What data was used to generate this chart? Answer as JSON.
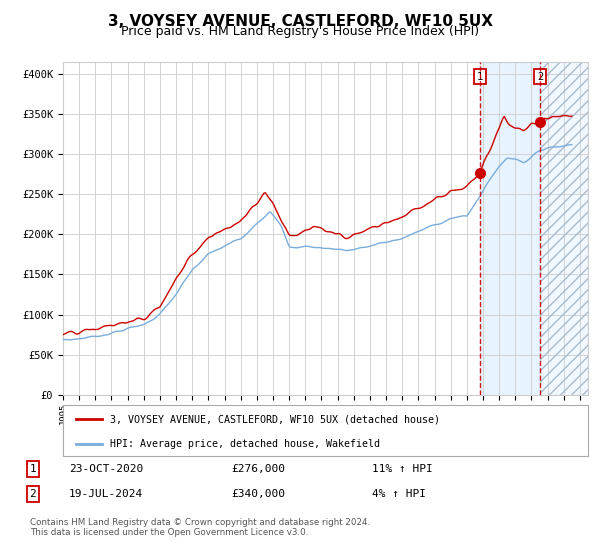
{
  "title": "3, VOYSEY AVENUE, CASTLEFORD, WF10 5UX",
  "subtitle": "Price paid vs. HM Land Registry's House Price Index (HPI)",
  "title_fontsize": 11,
  "subtitle_fontsize": 9,
  "ylabel_ticks": [
    "£0",
    "£50K",
    "£100K",
    "£150K",
    "£200K",
    "£250K",
    "£300K",
    "£350K",
    "£400K"
  ],
  "ytick_values": [
    0,
    50000,
    100000,
    150000,
    200000,
    250000,
    300000,
    350000,
    400000
  ],
  "ylim": [
    0,
    415000
  ],
  "xlim_start": 1995.0,
  "xlim_end": 2027.5,
  "xticks": [
    1995,
    1996,
    1997,
    1998,
    1999,
    2000,
    2001,
    2002,
    2003,
    2004,
    2005,
    2006,
    2007,
    2008,
    2009,
    2010,
    2011,
    2012,
    2013,
    2014,
    2015,
    2016,
    2017,
    2018,
    2019,
    2020,
    2021,
    2022,
    2023,
    2024,
    2025,
    2026,
    2027
  ],
  "hpi_color": "#7aaddc",
  "price_color": "#cc0000",
  "marker_color": "#cc0000",
  "marker1_x": 2020.81,
  "marker1_y": 276000,
  "marker2_x": 2024.54,
  "marker2_y": 340000,
  "vline1_x": 2020.81,
  "vline2_x": 2024.54,
  "between_shade_color": "#ddeeff",
  "hatch_color": "#aabbcc",
  "legend_label_price": "3, VOYSEY AVENUE, CASTLEFORD, WF10 5UX (detached house)",
  "legend_label_hpi": "HPI: Average price, detached house, Wakefield",
  "table_row1": [
    "1",
    "23-OCT-2020",
    "£276,000",
    "11% ↑ HPI"
  ],
  "table_row2": [
    "2",
    "19-JUL-2024",
    "£340,000",
    "4% ↑ HPI"
  ],
  "footnote": "Contains HM Land Registry data © Crown copyright and database right 2024.\nThis data is licensed under the Open Government Licence v3.0.",
  "bg_color": "#ffffff",
  "plot_bg_color": "#ffffff",
  "grid_color": "#cccccc"
}
